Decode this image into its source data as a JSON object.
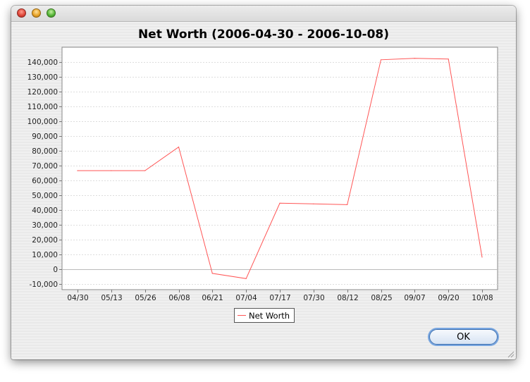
{
  "window": {
    "buttons": {
      "close": "close-window-button",
      "minimize": "minimize-window-button",
      "zoom": "zoom-window-button"
    },
    "ok_label": "OK"
  },
  "chart_data": {
    "type": "line",
    "title": "Net Worth (2006-04-30 - 2006-10-08)",
    "xlabel": "",
    "ylabel": "",
    "categories": [
      "04/30",
      "05/13",
      "05/26",
      "06/08",
      "06/21",
      "07/04",
      "07/17",
      "07/30",
      "08/12",
      "08/25",
      "09/07",
      "09/20",
      "10/08"
    ],
    "series": [
      {
        "name": "Net Worth",
        "color": "#ff5555",
        "values": [
          66500,
          66500,
          66500,
          82500,
          -3000,
          -6500,
          44500,
          44000,
          43500,
          141500,
          142500,
          142000,
          8000
        ]
      }
    ],
    "ylim": [
      -14000,
      150000
    ],
    "yticks": [
      -10000,
      0,
      10000,
      20000,
      30000,
      40000,
      50000,
      60000,
      70000,
      80000,
      90000,
      100000,
      110000,
      120000,
      130000,
      140000
    ],
    "ytick_labels": [
      "-10,000",
      "0",
      "10,000",
      "20,000",
      "30,000",
      "40,000",
      "50,000",
      "60,000",
      "70,000",
      "80,000",
      "90,000",
      "100,000",
      "110,000",
      "120,000",
      "130,000",
      "140,000"
    ],
    "grid": true,
    "legend_position": "bottom-center"
  }
}
